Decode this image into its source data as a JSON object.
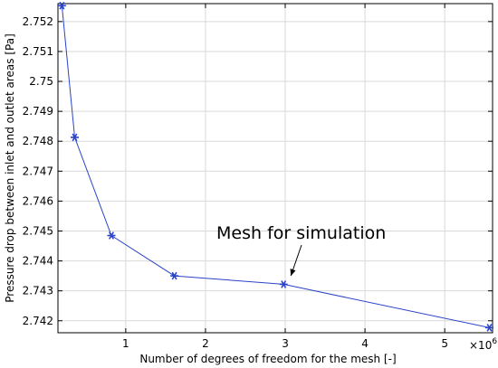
{
  "chart_data": {
    "type": "line",
    "title": "",
    "xlabel": "Number of degrees of freedom for the mesh [-]",
    "ylabel": "Pressure drop between inlet and outlet areas [Pa]",
    "x_multiplier_label": "×10",
    "x_multiplier_exponent": "6",
    "xlim": [
      0.15,
      5.6
    ],
    "ylim": [
      2.7416,
      2.7526
    ],
    "x_ticks": [
      1,
      2,
      3,
      4,
      5
    ],
    "x_tick_labels": [
      "1",
      "2",
      "3",
      "4",
      "5"
    ],
    "y_ticks": [
      2.742,
      2.743,
      2.744,
      2.745,
      2.746,
      2.747,
      2.748,
      2.749,
      2.75,
      2.751,
      2.752
    ],
    "y_tick_labels": [
      "2.742",
      "2.743",
      "2.744",
      "2.745",
      "2.746",
      "2.747",
      "2.748",
      "2.749",
      "2.75",
      "2.751",
      "2.752"
    ],
    "grid": true,
    "legend": "none",
    "series": [
      {
        "marker": "asterisk",
        "color": "#2a44c9",
        "x": [
          0.2,
          0.36,
          0.82,
          1.61,
          2.98,
          5.56
        ],
        "y": [
          2.75253,
          2.74813,
          2.74485,
          2.7435,
          2.74322,
          2.74177
        ]
      }
    ],
    "annotations": [
      {
        "text": "Mesh for simulation",
        "target_x": 3.07,
        "target_y": 2.7435
      }
    ]
  }
}
